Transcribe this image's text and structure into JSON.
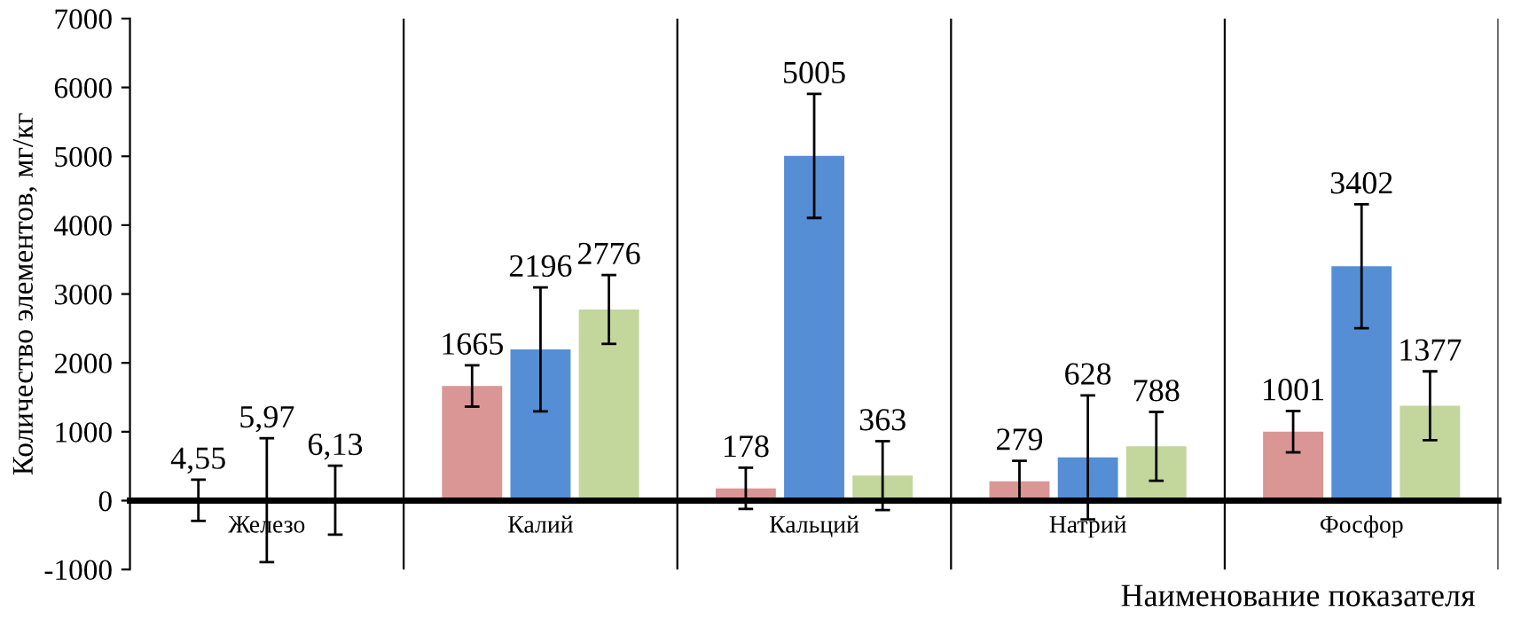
{
  "chart_data": {
    "type": "bar",
    "xlabel": "Наименование показателя",
    "ylabel": "Количество элементов, мг/кг",
    "categories": [
      "Железо",
      "Калий",
      "Кальций",
      "Натрий",
      "Фосфор"
    ],
    "series": [
      {
        "color": "#d99694",
        "values": [
          4.55,
          1665,
          178,
          279,
          1001
        ],
        "errors": [
          300,
          300,
          300,
          300,
          300
        ],
        "value_labels": [
          "4,55",
          "1665",
          "178",
          "279",
          "1001"
        ]
      },
      {
        "color": "#558ed5",
        "values": [
          5.97,
          2196,
          5005,
          628,
          3402
        ],
        "errors": [
          900,
          900,
          900,
          900,
          900
        ],
        "value_labels": [
          "5,97",
          "2196",
          "5005",
          "628",
          "3402"
        ]
      },
      {
        "color": "#c3d69b",
        "values": [
          6.13,
          2776,
          363,
          788,
          1377
        ],
        "errors": [
          500,
          500,
          500,
          500,
          500
        ],
        "value_labels": [
          "6,13",
          "2776",
          "363",
          "788",
          "1377"
        ]
      }
    ],
    "ylim": [
      -1000,
      7000
    ],
    "yticks": [
      -1000,
      0,
      1000,
      2000,
      3000,
      4000,
      5000,
      6000,
      7000
    ],
    "grid": "x",
    "legend": false
  }
}
